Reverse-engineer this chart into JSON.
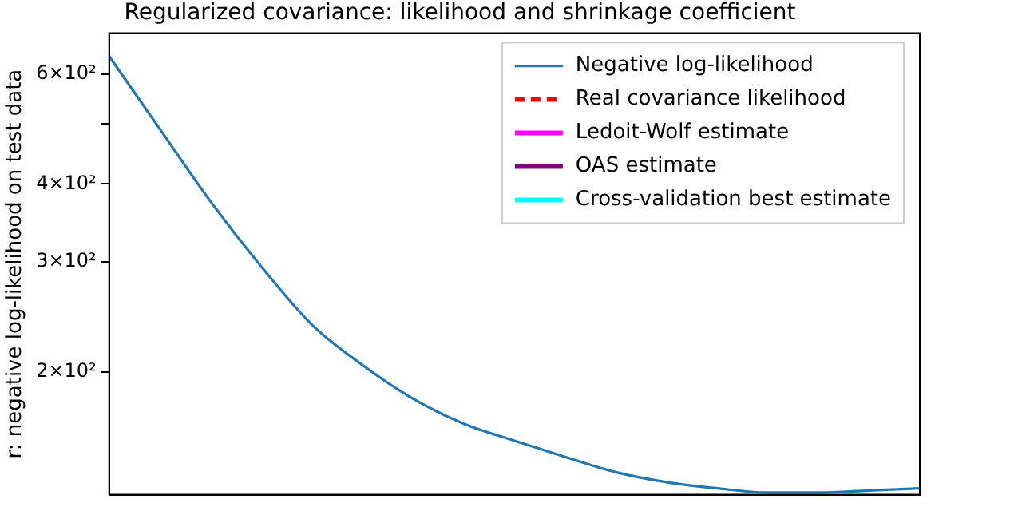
{
  "chart_data": {
    "type": "line",
    "title": "Regularized covariance: likelihood and shrinkage coefficient",
    "ylabel": "r: negative log-likelihood on test data",
    "categories": [
      null,
      null,
      null,
      null,
      null,
      null,
      null,
      null,
      null,
      null,
      null,
      null,
      null,
      null,
      null,
      null,
      null
    ],
    "series": [
      {
        "name": "Negative log-likelihood",
        "color": "#1f77b4",
        "values": [
          641,
          490,
          375,
          295,
          238,
          205,
          181,
          165,
          155,
          146,
          138,
          133,
          130,
          128,
          128,
          129,
          130
        ]
      },
      {
        "name": "Real covariance likelihood",
        "color": "#ff0000",
        "line_style": "dashed",
        "values": [
          null,
          null,
          null,
          null,
          null,
          null,
          null,
          null,
          null,
          null,
          null,
          null,
          null,
          null,
          null,
          null,
          null
        ]
      },
      {
        "name": "Ledoit-Wolf estimate",
        "color": "#ff00ff",
        "values": [
          null,
          null,
          null,
          null,
          null,
          null,
          null,
          null,
          null,
          null,
          null,
          null,
          null,
          null,
          null,
          null,
          null
        ]
      },
      {
        "name": "OAS estimate",
        "color": "#800080",
        "values": [
          null,
          null,
          null,
          null,
          null,
          null,
          null,
          null,
          null,
          null,
          null,
          null,
          null,
          null,
          null,
          null,
          null
        ]
      },
      {
        "name": "Cross-validation best estimate",
        "color": "#00ffff",
        "values": [
          null,
          null,
          null,
          null,
          null,
          null,
          null,
          null,
          null,
          null,
          null,
          null,
          null,
          null,
          null,
          null,
          null
        ]
      }
    ],
    "log": "y",
    "ylim": [
      127,
      698
    ],
    "yticks": [
      {
        "value": 200,
        "label": "2×10²"
      },
      {
        "value": 300,
        "label": "3×10²"
      },
      {
        "value": 400,
        "label": "4×10²"
      },
      {
        "value": 500,
        "label": null
      },
      {
        "value": 600,
        "label": "6×10²"
      }
    ],
    "tick_labels": "y",
    "grid": false,
    "legend": "top right",
    "line_style": "solid",
    "marker": "none"
  }
}
